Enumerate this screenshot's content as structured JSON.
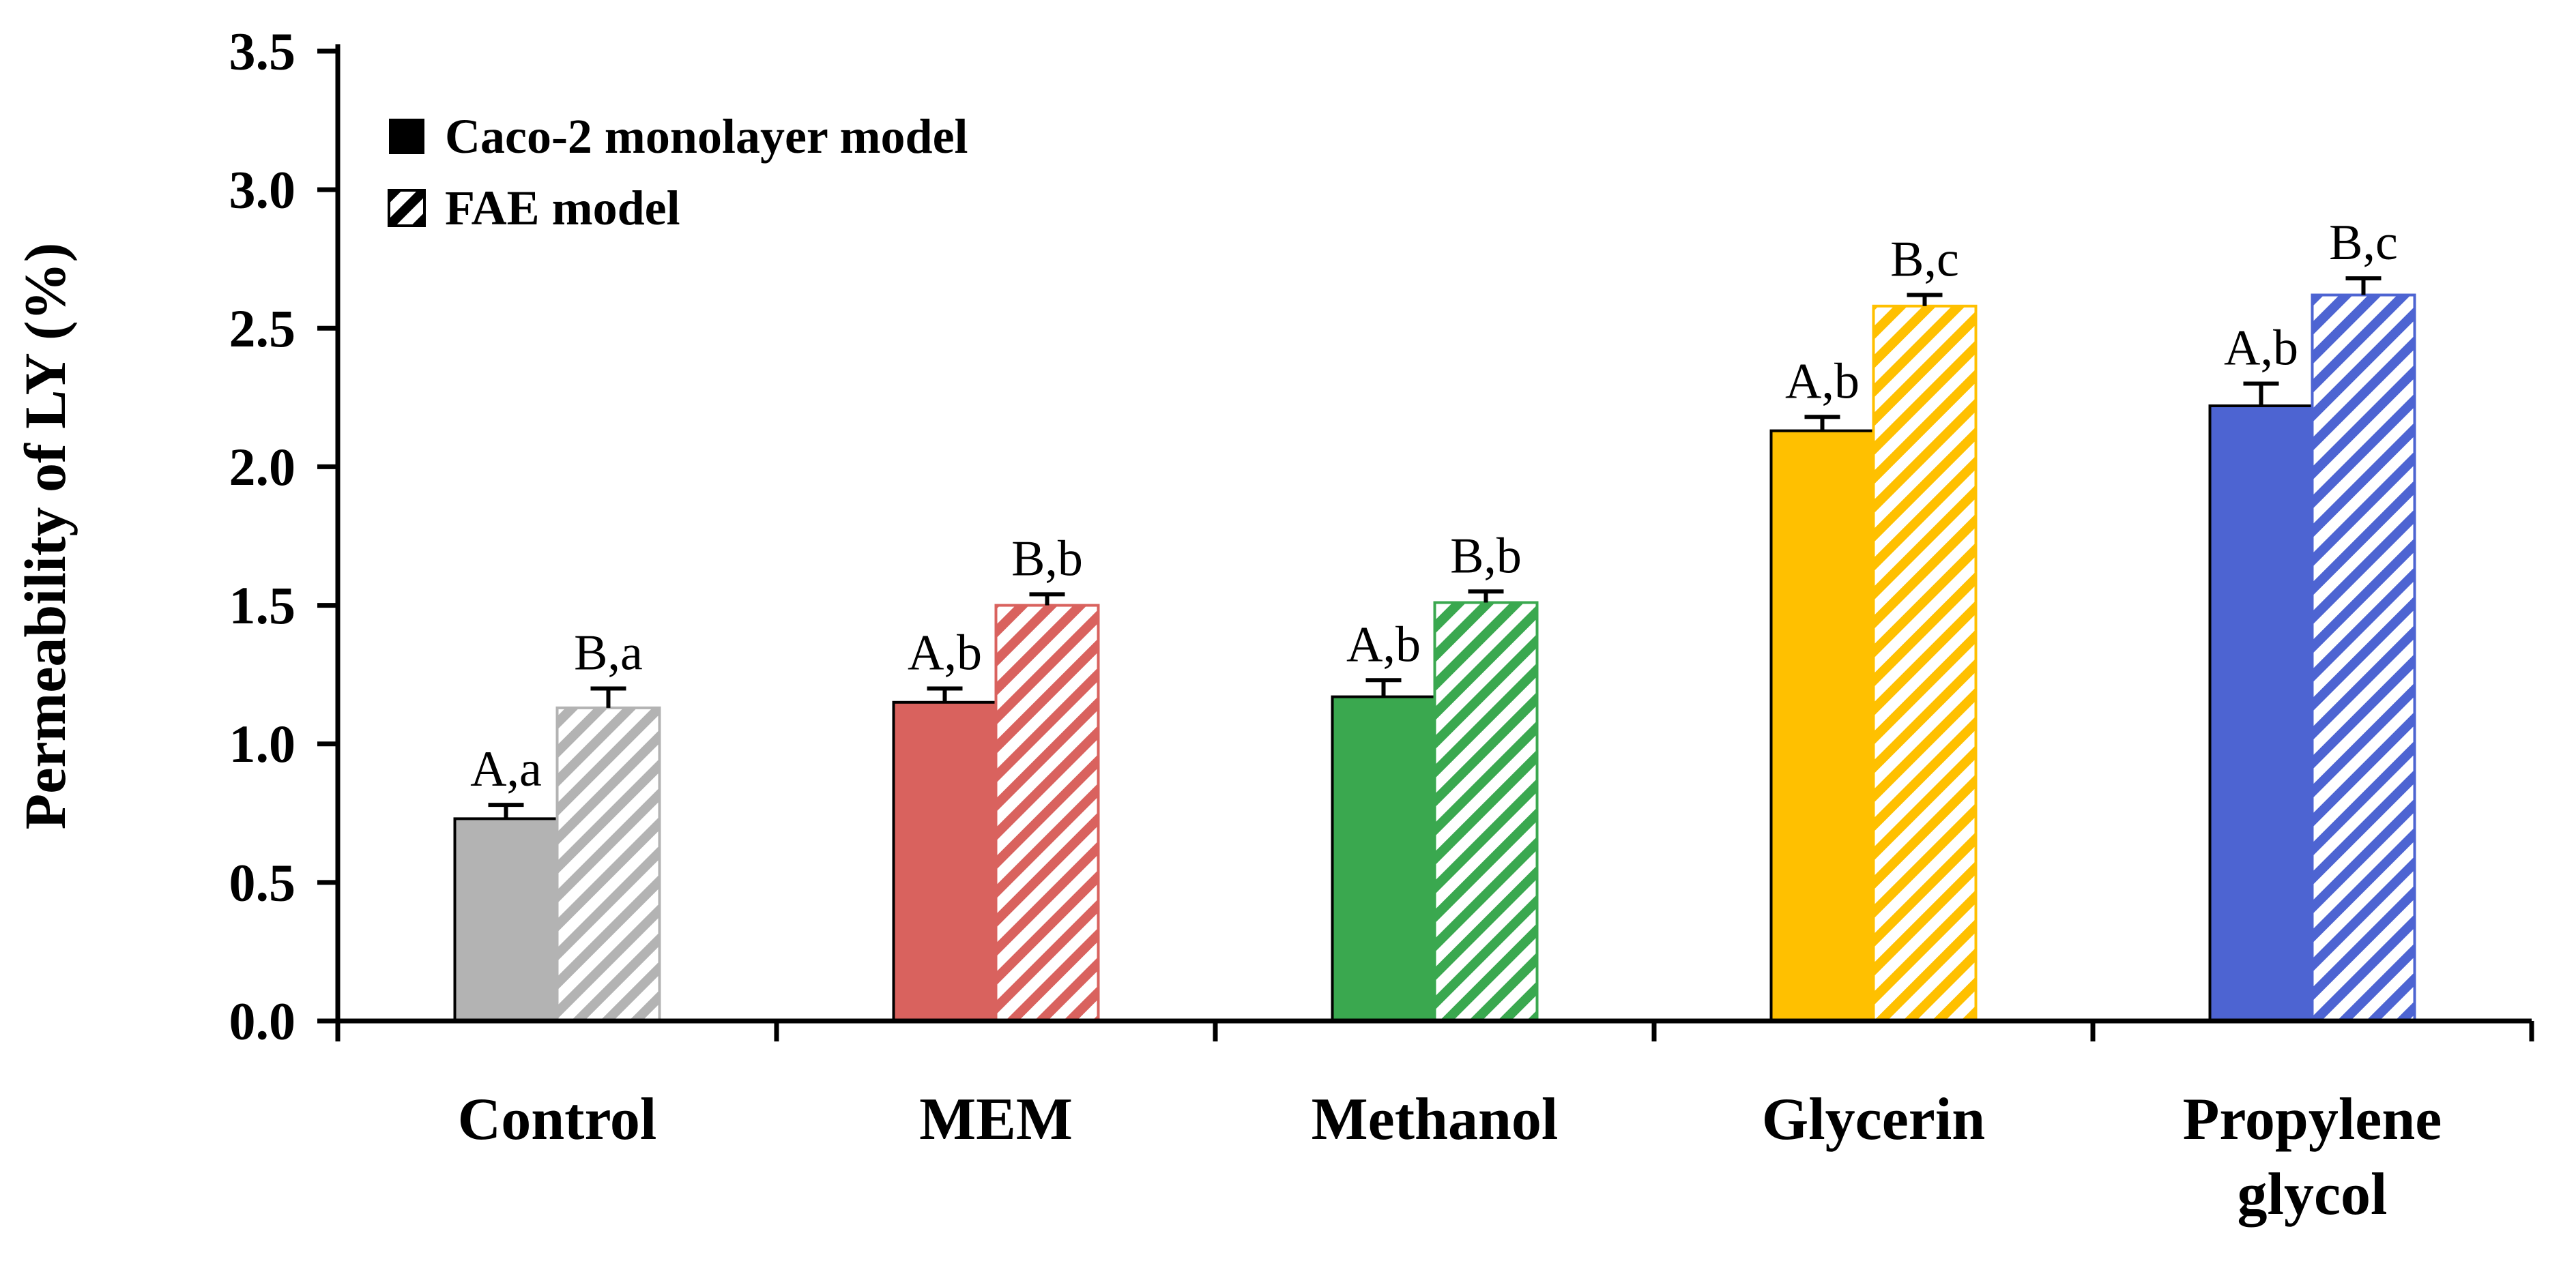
{
  "chart_data": {
    "type": "bar",
    "title": "",
    "ylabel": "Permeability of LY (%)",
    "xlabel": "",
    "ylim": [
      0.0,
      3.5
    ],
    "ytick_step": 0.5,
    "ytick_labels": [
      "0.0",
      "0.5",
      "1.0",
      "1.5",
      "2.0",
      "2.5",
      "3.0",
      "3.5"
    ],
    "categories": [
      "Control",
      "MEM",
      "Methanol",
      "Glycerin",
      "Propylene glycol"
    ],
    "category_colors": [
      "#b3b3b3",
      "#d9625e",
      "#3aa84f",
      "#ffc000",
      "#4d64d2"
    ],
    "series": [
      {
        "name": "Caco-2 monolayer model",
        "style": "solid",
        "values": [
          0.73,
          1.15,
          1.17,
          2.13,
          2.22
        ],
        "errors": [
          0.05,
          0.05,
          0.06,
          0.05,
          0.08
        ],
        "labels": [
          "A,a",
          "A,b",
          "A,b",
          "A,b",
          "A,b"
        ]
      },
      {
        "name": "FAE model",
        "style": "hatched",
        "values": [
          1.13,
          1.5,
          1.51,
          2.58,
          2.62
        ],
        "errors": [
          0.07,
          0.04,
          0.04,
          0.04,
          0.06
        ],
        "labels": [
          "B,a",
          "B,b",
          "B,b",
          "B,c",
          "B,c"
        ]
      }
    ],
    "legend_position": "top-left",
    "grid": false,
    "axis_color": "#000000",
    "background_color": "#ffffff"
  }
}
